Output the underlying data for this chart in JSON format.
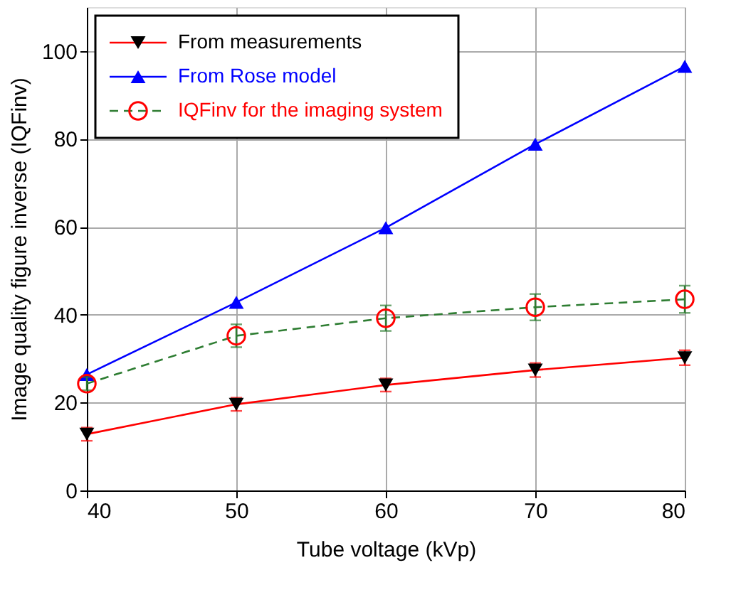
{
  "chart_data": {
    "type": "line",
    "xlabel": "Tube voltage (kVp)",
    "ylabel": "Image quality figure inverse (IQFinv)",
    "x": [
      40,
      50,
      60,
      70,
      80
    ],
    "series": [
      {
        "color": "#ff0000",
        "values": [
          12.8,
          19.6,
          24.0,
          27.4,
          30.2
        ],
        "errors": [
          1.5,
          1.5,
          1.5,
          1.6,
          1.7
        ],
        "marker": "none",
        "line_style": "solid"
      },
      {
        "type": "scatter",
        "name": "From measurements",
        "color": "#000000",
        "values": [
          12.8,
          19.6,
          24.0,
          27.4,
          30.2
        ],
        "marker": "triangle-down"
      },
      {
        "name": "From Rose model",
        "color": "#0000ff",
        "values": [
          26.4,
          42.8,
          59.8,
          78.8,
          96.5
        ],
        "marker": "triangle",
        "line_style": "solid"
      },
      {
        "color": "#2e7d32",
        "values": [
          24.3,
          35.2,
          39.2,
          41.7,
          43.5
        ],
        "errors": [
          1.5,
          2.6,
          2.9,
          3.0,
          3.1
        ],
        "marker": "none",
        "line_style": "dashed"
      },
      {
        "type": "scatter",
        "name": "IQFinv for the imaging system",
        "color": "#ff0000",
        "values": [
          24.3,
          35.2,
          39.2,
          41.7,
          43.5
        ],
        "marker": "circle"
      }
    ],
    "xlim": [
      40,
      80
    ],
    "xticks": [
      40,
      50,
      60,
      70,
      80
    ],
    "ylim": [
      0,
      110
    ],
    "yticks": [
      0,
      20,
      40,
      60,
      80,
      100
    ],
    "grid": true,
    "legend": "top left"
  }
}
